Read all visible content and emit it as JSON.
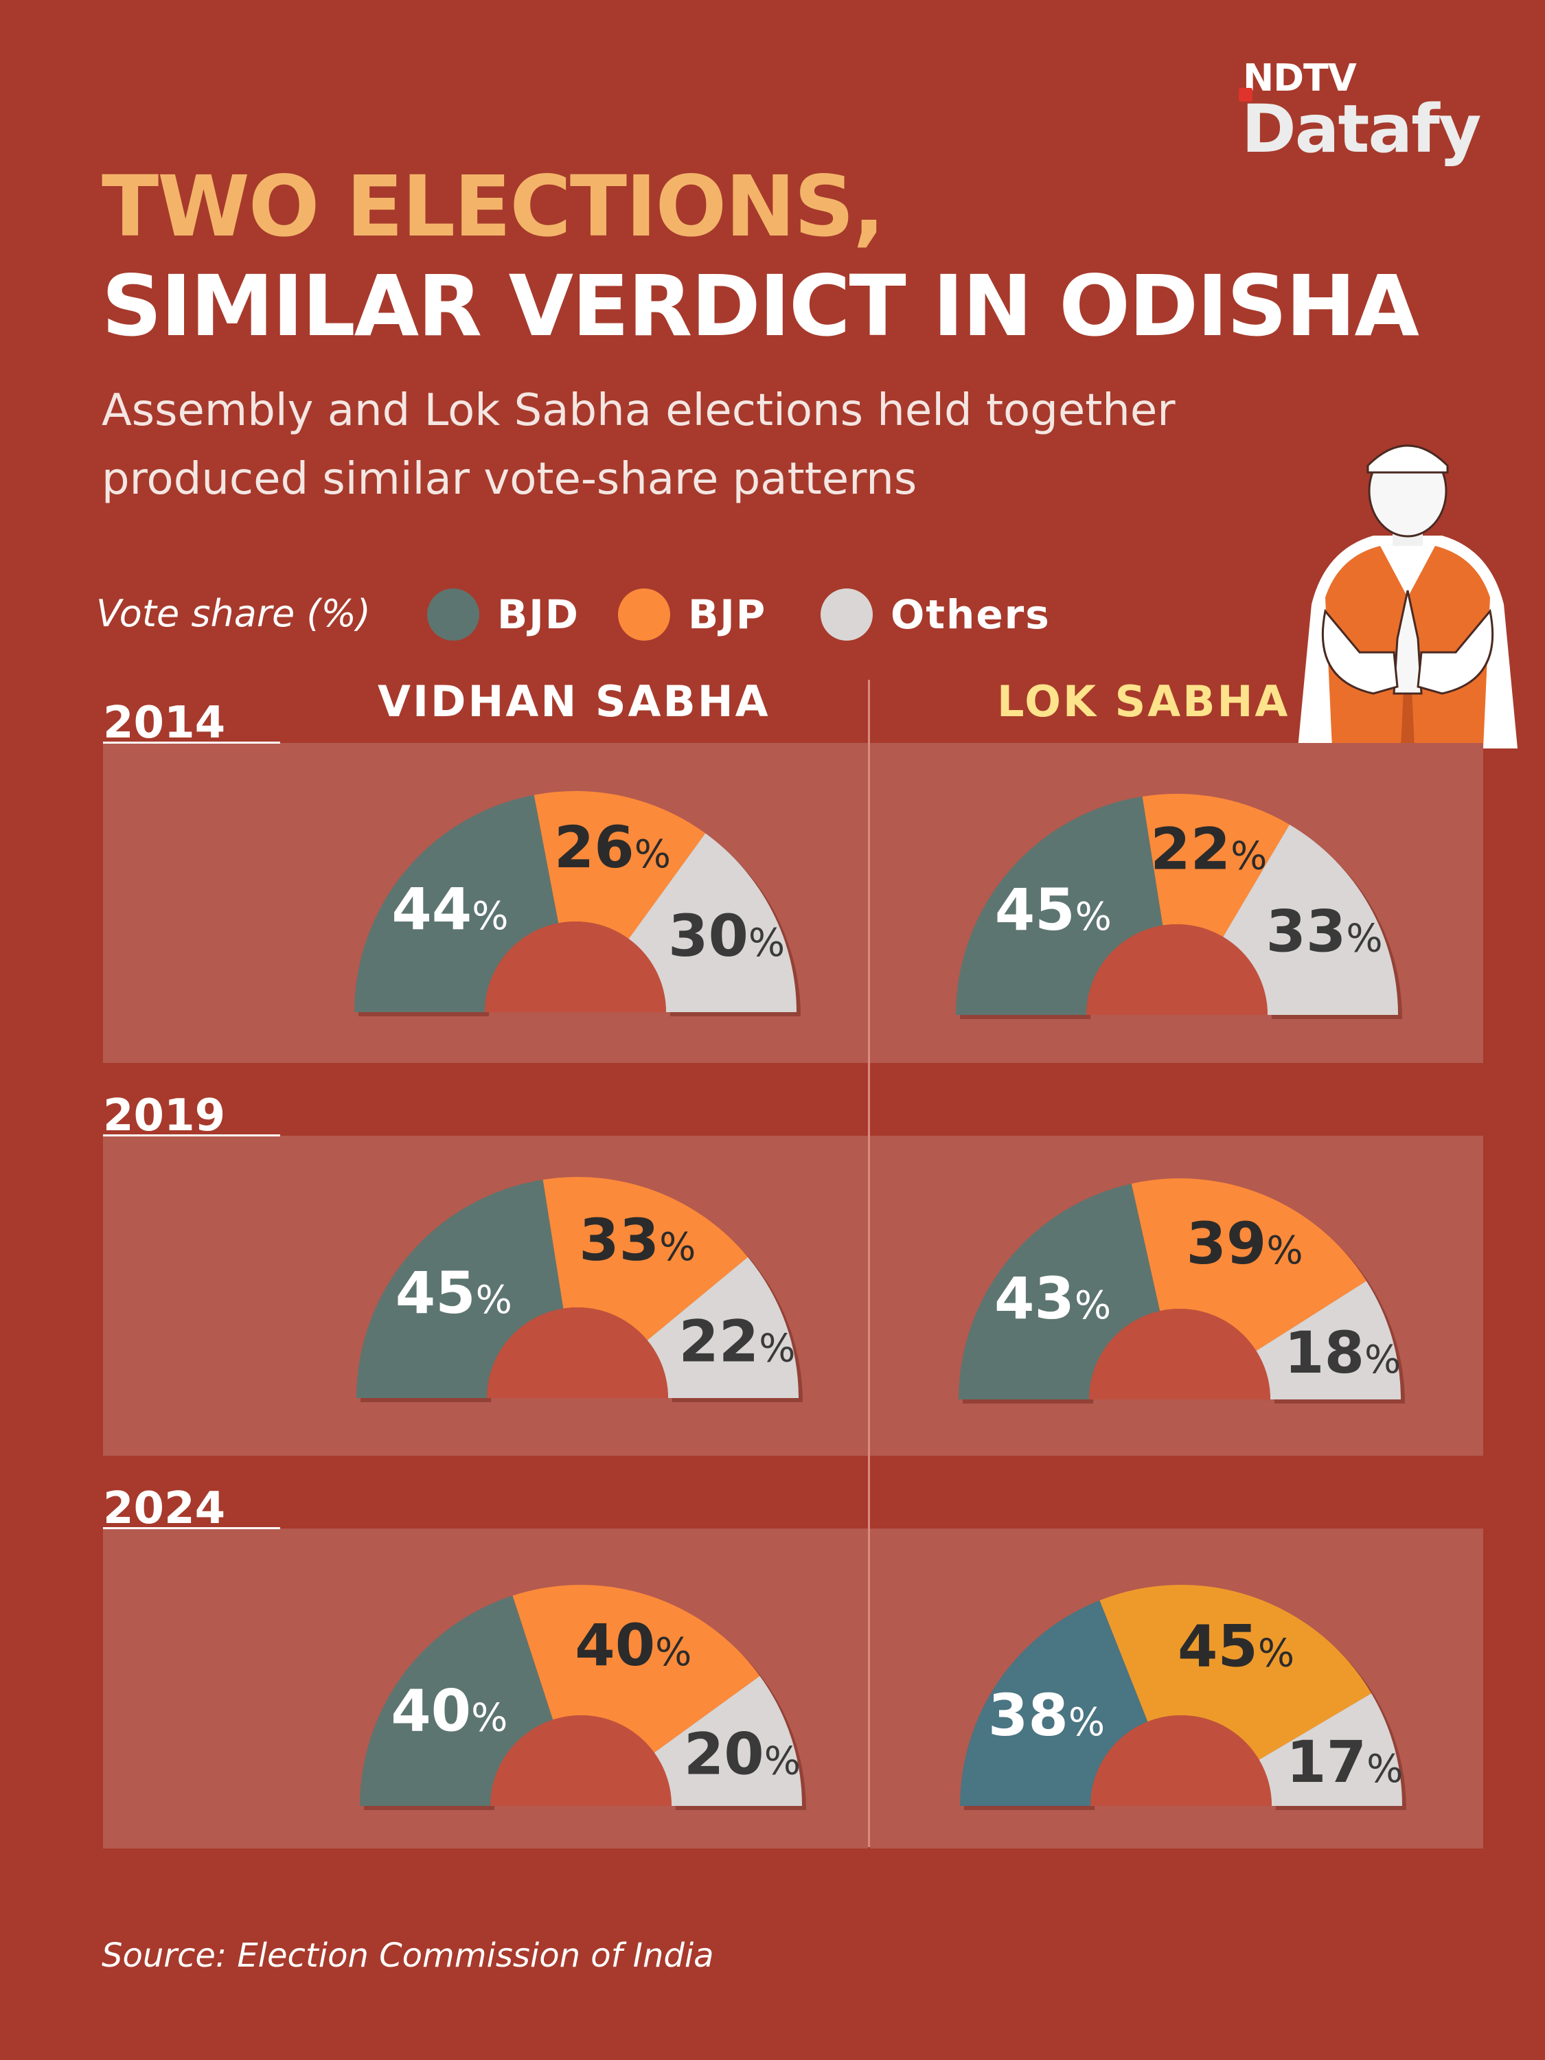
{
  "brand": {
    "top": "NDTV",
    "bottom": "Datafy"
  },
  "title_line1": "TWO ELECTIONS,",
  "title_line2": "SIMILAR VERDICT IN ODISHA",
  "subtitle": "Assembly and Lok Sabha elections held together\nproduced similar vote-share patterns",
  "legend": {
    "title": "Vote share (%)",
    "items": [
      {
        "label": "BJD",
        "color": "#5d7570"
      },
      {
        "label": "BJP",
        "color": "#fb8a3a"
      },
      {
        "label": "Others",
        "color": "#d9d6d5"
      }
    ]
  },
  "columns": [
    "VIDHAN SABHA",
    "LOK SABHA"
  ],
  "years": [
    "2014",
    "2019",
    "2024"
  ],
  "colors": {
    "background": "#a73a2c",
    "panel": "#b45a4f",
    "hole": "#c0503d",
    "lok_sabha_heading": "#fde38b",
    "bjd_2024_lok_sabha": "#4a7582",
    "bjp_2024_lok_sabha": "#ee9a2b"
  },
  "chart_data": [
    {
      "type": "pie",
      "panel": "VIDHAN SABHA",
      "year": "2014",
      "categories": [
        "BJD",
        "BJP",
        "Others"
      ],
      "values": [
        44,
        26,
        30
      ]
    },
    {
      "type": "pie",
      "panel": "LOK SABHA",
      "year": "2014",
      "categories": [
        "BJD",
        "BJP",
        "Others"
      ],
      "values": [
        45,
        22,
        33
      ]
    },
    {
      "type": "pie",
      "panel": "VIDHAN SABHA",
      "year": "2019",
      "categories": [
        "BJD",
        "BJP",
        "Others"
      ],
      "values": [
        45,
        33,
        22
      ]
    },
    {
      "type": "pie",
      "panel": "LOK SABHA",
      "year": "2019",
      "categories": [
        "BJD",
        "BJP",
        "Others"
      ],
      "values": [
        43,
        39,
        18
      ]
    },
    {
      "type": "pie",
      "panel": "VIDHAN SABHA",
      "year": "2024",
      "categories": [
        "BJD",
        "BJP",
        "Others"
      ],
      "values": [
        40,
        40,
        20
      ]
    },
    {
      "type": "pie",
      "panel": "LOK SABHA",
      "year": "2024",
      "categories": [
        "BJD",
        "BJP",
        "Others"
      ],
      "values": [
        38,
        45,
        17
      ]
    }
  ],
  "source": "Source: Election Commission of India"
}
